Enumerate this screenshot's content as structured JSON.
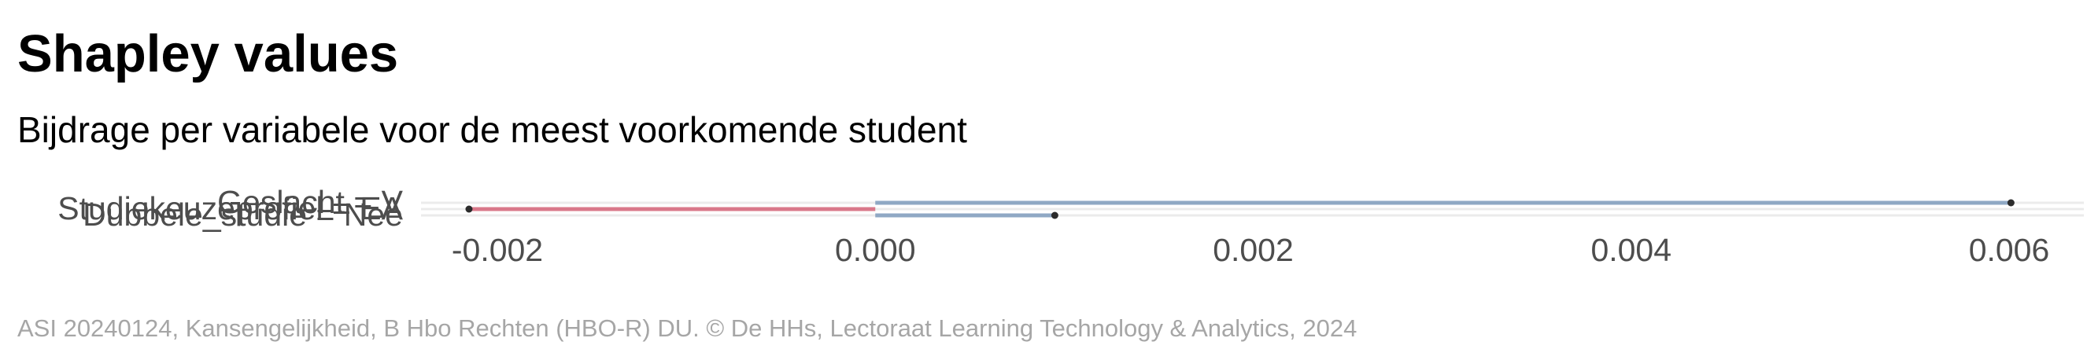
{
  "title": "Shapley values",
  "subtitle": "Bijdrage per variabele voor de meest voorkomende student",
  "caption": "ASI 20240124, Kansengelijkheid, B Hbo Rechten (HBO-R) DU. © De HHs, Lectoraat Learning Technology & Analytics, 2024",
  "colors": {
    "negative": "#d9788a",
    "positive": "#8fa8c4",
    "point": "#2b2b2b",
    "grid": "#ebebeb",
    "axis_text": "#4d4d4d"
  },
  "chart_data": {
    "type": "bar",
    "orientation": "horizontal",
    "title": "Shapley values",
    "subtitle": "Bijdrage per variabele voor de meest voorkomende student",
    "categories": [
      "Geslacht = V",
      "Studiekeuzeprofiel = EA",
      "Dubbele_studie = Nee"
    ],
    "values": [
      0.00601,
      -0.00215,
      0.00095
    ],
    "xlim": [
      -0.0025,
      0.0065
    ],
    "x_ticks": [
      -0.002,
      0.0,
      0.002,
      0.004,
      0.006
    ],
    "x_tick_labels": [
      "-0.002",
      "0.000",
      "0.002",
      "0.004",
      "0.006"
    ],
    "xlabel": "",
    "ylabel": "",
    "grid": true,
    "legend": "none"
  }
}
